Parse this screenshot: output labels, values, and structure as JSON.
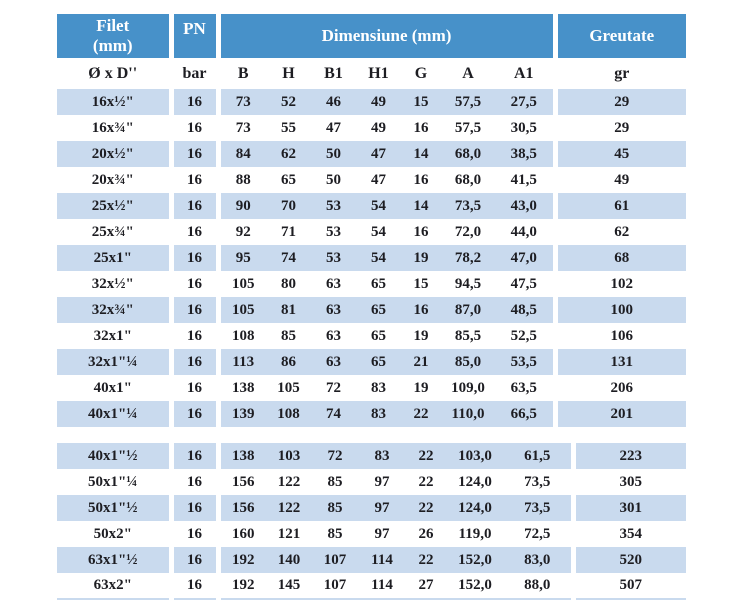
{
  "colors": {
    "header_bg": "#4791c9",
    "alt_row_bg": "#c9daee",
    "text": "#1d1d22",
    "header_text": "#ffffff"
  },
  "header": {
    "filet_line1": "Filet",
    "filet_line2": "(mm)",
    "pn": "PN",
    "dimensiune": "Dimensiune (mm)",
    "greutate": "Greutate"
  },
  "subheader": {
    "filet": "Ø x D''",
    "pn": "bar",
    "dims": [
      "B",
      "H",
      "B1",
      "H1",
      "G",
      "A",
      "A1"
    ],
    "greutate": "gr"
  },
  "sections": [
    {
      "rows": [
        {
          "filet": "16x½\"",
          "pn": "16",
          "dims": [
            "73",
            "52",
            "46",
            "49",
            "15",
            "57,5",
            "27,5"
          ],
          "greutate": "29"
        },
        {
          "filet": "16x¾\"",
          "pn": "16",
          "dims": [
            "73",
            "55",
            "47",
            "49",
            "16",
            "57,5",
            "30,5"
          ],
          "greutate": "29"
        },
        {
          "filet": "20x½\"",
          "pn": "16",
          "dims": [
            "84",
            "62",
            "50",
            "47",
            "14",
            "68,0",
            "38,5"
          ],
          "greutate": "45"
        },
        {
          "filet": "20x¾\"",
          "pn": "16",
          "dims": [
            "88",
            "65",
            "50",
            "47",
            "16",
            "68,0",
            "41,5"
          ],
          "greutate": "49"
        },
        {
          "filet": "25x½\"",
          "pn": "16",
          "dims": [
            "90",
            "70",
            "53",
            "54",
            "14",
            "73,5",
            "43,0"
          ],
          "greutate": "61"
        },
        {
          "filet": "25x¾\"",
          "pn": "16",
          "dims": [
            "92",
            "71",
            "53",
            "54",
            "16",
            "72,0",
            "44,0"
          ],
          "greutate": "62"
        },
        {
          "filet": "25x1\"",
          "pn": "16",
          "dims": [
            "95",
            "74",
            "53",
            "54",
            "19",
            "78,2",
            "47,0"
          ],
          "greutate": "68"
        },
        {
          "filet": "32x½\"",
          "pn": "16",
          "dims": [
            "105",
            "80",
            "63",
            "65",
            "15",
            "94,5",
            "47,5"
          ],
          "greutate": "102"
        },
        {
          "filet": "32x¾\"",
          "pn": "16",
          "dims": [
            "105",
            "81",
            "63",
            "65",
            "16",
            "87,0",
            "48,5"
          ],
          "greutate": "100"
        },
        {
          "filet": "32x1\"",
          "pn": "16",
          "dims": [
            "108",
            "85",
            "63",
            "65",
            "19",
            "85,5",
            "52,5"
          ],
          "greutate": "106"
        },
        {
          "filet": "32x1\"¼",
          "pn": "16",
          "dims": [
            "113",
            "86",
            "63",
            "65",
            "21",
            "85,0",
            "53,5"
          ],
          "greutate": "131"
        },
        {
          "filet": "40x1\"",
          "pn": "16",
          "dims": [
            "138",
            "105",
            "72",
            "83",
            "19",
            "109,0",
            "63,5"
          ],
          "greutate": "206"
        },
        {
          "filet": "40x1\"¼",
          "pn": "16",
          "dims": [
            "139",
            "108",
            "74",
            "83",
            "22",
            "110,0",
            "66,5"
          ],
          "greutate": "201"
        }
      ]
    },
    {
      "rows": [
        {
          "filet": "40x1\"½",
          "pn": "16",
          "dims": [
            "138",
            "103",
            "72",
            "83",
            "22",
            "103,0",
            "61,5"
          ],
          "greutate": "223"
        },
        {
          "filet": "50x1\"¼",
          "pn": "16",
          "dims": [
            "156",
            "122",
            "85",
            "97",
            "22",
            "124,0",
            "73,5"
          ],
          "greutate": "305"
        },
        {
          "filet": "50x1\"½",
          "pn": "16",
          "dims": [
            "156",
            "122",
            "85",
            "97",
            "22",
            "124,0",
            "73,5"
          ],
          "greutate": "301"
        },
        {
          "filet": "50x2\"",
          "pn": "16",
          "dims": [
            "160",
            "121",
            "85",
            "97",
            "26",
            "119,0",
            "72,5"
          ],
          "greutate": "354"
        },
        {
          "filet": "63x1\"½",
          "pn": "16",
          "dims": [
            "192",
            "140",
            "107",
            "114",
            "22",
            "152,0",
            "83,0"
          ],
          "greutate": "520"
        },
        {
          "filet": "63x2\"",
          "pn": "16",
          "dims": [
            "192",
            "145",
            "107",
            "114",
            "27",
            "152,0",
            "88,0"
          ],
          "greutate": "507"
        }
      ]
    }
  ]
}
